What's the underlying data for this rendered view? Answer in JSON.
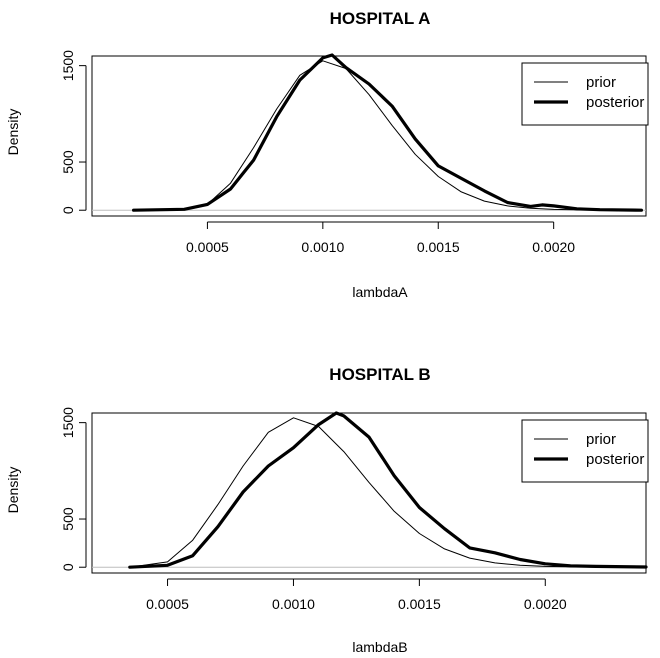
{
  "chart_data": [
    {
      "type": "line",
      "title": "HOSPITAL A",
      "xlabel": "lambdaA",
      "ylabel": "Density",
      "xlim": [
        0.0,
        0.0024
      ],
      "ylim": [
        -60,
        1600
      ],
      "x_ticks": [
        "0.0005",
        "0.0010",
        "0.0015",
        "0.0020"
      ],
      "x_tick_values": [
        0.0005,
        0.001,
        0.0015,
        0.002
      ],
      "y_ticks": [
        "0",
        "500",
        "1500"
      ],
      "y_tick_values": [
        0,
        500,
        1500
      ],
      "legend_position": "top-right",
      "series": [
        {
          "name": "prior",
          "color": "#000000",
          "points": [
            [
              0.00018,
              0
            ],
            [
              0.0004,
              8
            ],
            [
              0.0005,
              60
            ],
            [
              0.0006,
              280
            ],
            [
              0.0007,
              650
            ],
            [
              0.0008,
              1050
            ],
            [
              0.0009,
              1400
            ],
            [
              0.001,
              1550
            ],
            [
              0.0011,
              1470
            ],
            [
              0.0012,
              1200
            ],
            [
              0.0013,
              880
            ],
            [
              0.0014,
              580
            ],
            [
              0.0015,
              350
            ],
            [
              0.0016,
              190
            ],
            [
              0.0017,
              95
            ],
            [
              0.0018,
              45
            ],
            [
              0.0019,
              20
            ],
            [
              0.002,
              8
            ],
            [
              0.0022,
              1
            ],
            [
              0.00238,
              0
            ]
          ]
        },
        {
          "name": "posterior",
          "color": "#000000",
          "points": [
            [
              0.00018,
              0
            ],
            [
              0.0004,
              10
            ],
            [
              0.0005,
              60
            ],
            [
              0.0006,
              220
            ],
            [
              0.0007,
              520
            ],
            [
              0.0008,
              970
            ],
            [
              0.0009,
              1350
            ],
            [
              0.001,
              1580
            ],
            [
              0.00104,
              1610
            ],
            [
              0.0011,
              1480
            ],
            [
              0.0012,
              1310
            ],
            [
              0.0013,
              1080
            ],
            [
              0.0014,
              740
            ],
            [
              0.0015,
              460
            ],
            [
              0.0016,
              330
            ],
            [
              0.0017,
              200
            ],
            [
              0.0018,
              80
            ],
            [
              0.0019,
              40
            ],
            [
              0.00195,
              55
            ],
            [
              0.002,
              45
            ],
            [
              0.0021,
              15
            ],
            [
              0.0022,
              5
            ],
            [
              0.00238,
              0
            ]
          ]
        }
      ]
    },
    {
      "type": "line",
      "title": "HOSPITAL B",
      "xlabel": "lambdaB",
      "ylabel": "Density",
      "xlim": [
        0.0002,
        0.0024
      ],
      "ylim": [
        -60,
        1600
      ],
      "x_ticks": [
        "0.0005",
        "0.0010",
        "0.0015",
        "0.0020"
      ],
      "x_tick_values": [
        0.0005,
        0.001,
        0.0015,
        0.002
      ],
      "y_ticks": [
        "0",
        "500",
        "1500"
      ],
      "y_tick_values": [
        0,
        500,
        1500
      ],
      "legend_position": "top-right",
      "series": [
        {
          "name": "prior",
          "color": "#000000",
          "points": [
            [
              0.00035,
              0
            ],
            [
              0.0005,
              55
            ],
            [
              0.0006,
              280
            ],
            [
              0.0007,
              650
            ],
            [
              0.0008,
              1050
            ],
            [
              0.0009,
              1400
            ],
            [
              0.001,
              1550
            ],
            [
              0.0011,
              1460
            ],
            [
              0.0012,
              1200
            ],
            [
              0.0013,
              880
            ],
            [
              0.0014,
              580
            ],
            [
              0.0015,
              350
            ],
            [
              0.0016,
              190
            ],
            [
              0.0017,
              95
            ],
            [
              0.0018,
              45
            ],
            [
              0.0019,
              20
            ],
            [
              0.002,
              8
            ],
            [
              0.0022,
              1
            ],
            [
              0.0024,
              0
            ]
          ]
        },
        {
          "name": "posterior",
          "color": "#000000",
          "points": [
            [
              0.00035,
              0
            ],
            [
              0.0005,
              20
            ],
            [
              0.0006,
              120
            ],
            [
              0.0007,
              420
            ],
            [
              0.0008,
              780
            ],
            [
              0.0009,
              1050
            ],
            [
              0.001,
              1240
            ],
            [
              0.0011,
              1480
            ],
            [
              0.00117,
              1600
            ],
            [
              0.0012,
              1570
            ],
            [
              0.0013,
              1350
            ],
            [
              0.0014,
              950
            ],
            [
              0.0015,
              620
            ],
            [
              0.0016,
              400
            ],
            [
              0.0017,
              200
            ],
            [
              0.0018,
              150
            ],
            [
              0.0019,
              80
            ],
            [
              0.002,
              35
            ],
            [
              0.0021,
              15
            ],
            [
              0.0022,
              8
            ],
            [
              0.0024,
              2
            ]
          ]
        }
      ]
    }
  ]
}
